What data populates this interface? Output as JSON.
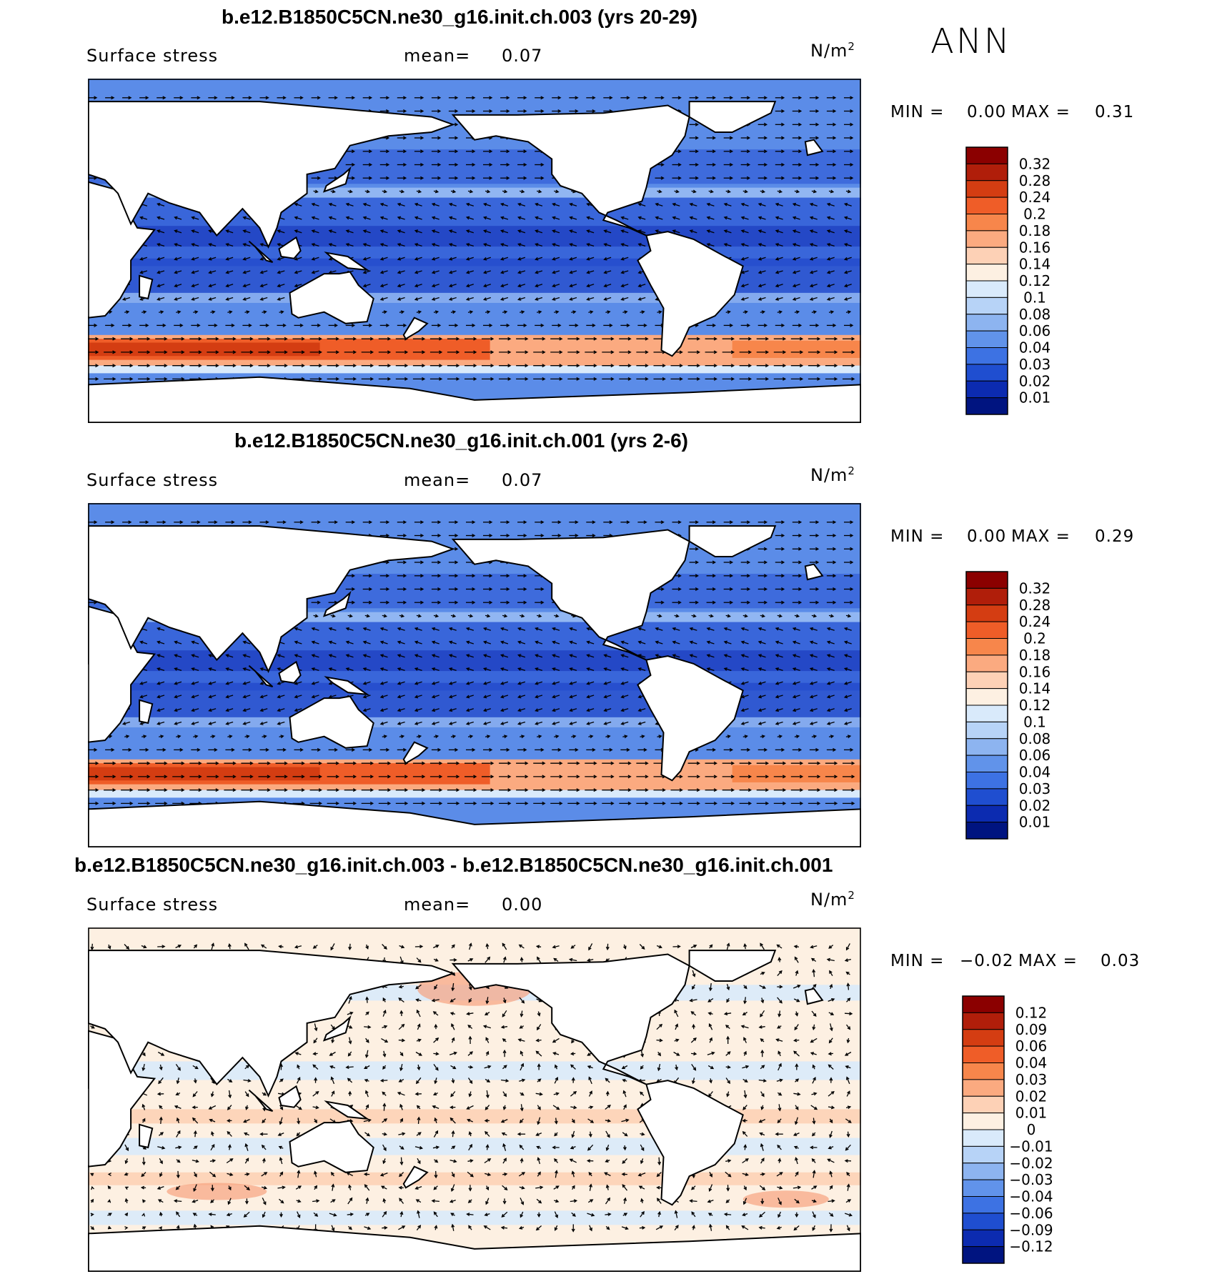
{
  "season": "ANN",
  "panels": [
    {
      "title": "b.e12.B1850C5CN.ne30_g16.init.ch.003 (yrs 20-29)",
      "left_label": "Surface stress",
      "mean_label": "mean=",
      "mean_value": "0.07",
      "units_base": "N/m",
      "units_exp": "2",
      "min_label": "MIN =",
      "min_value": "0.00",
      "max_label": "MAX =",
      "max_value": "0.31",
      "colorbar_ticks": [
        "0.32",
        "0.28",
        "0.24",
        "0.2",
        "0.18",
        "0.16",
        "0.14",
        "0.12",
        "0.1",
        "0.08",
        "0.06",
        "0.04",
        "0.03",
        "0.02",
        "0.01"
      ],
      "colorbar_colors": [
        "#8b0000",
        "#b01e0a",
        "#d43d12",
        "#ef5d28",
        "#f7864b",
        "#fbaa80",
        "#fdd1b6",
        "#fdf0e2",
        "#d9eafb",
        "#b7d3f7",
        "#8db4f0",
        "#6193ea",
        "#3d72e3",
        "#1f4ed0",
        "#0c2bb0",
        "#001480"
      ]
    },
    {
      "title": "b.e12.B1850C5CN.ne30_g16.init.ch.001 (yrs 2-6)",
      "left_label": "Surface stress",
      "mean_label": "mean=",
      "mean_value": "0.07",
      "units_base": "N/m",
      "units_exp": "2",
      "min_label": "MIN =",
      "min_value": "0.00",
      "max_label": "MAX =",
      "max_value": "0.29",
      "colorbar_ticks": [
        "0.32",
        "0.28",
        "0.24",
        "0.2",
        "0.18",
        "0.16",
        "0.14",
        "0.12",
        "0.1",
        "0.08",
        "0.06",
        "0.04",
        "0.03",
        "0.02",
        "0.01"
      ],
      "colorbar_colors": [
        "#8b0000",
        "#b01e0a",
        "#d43d12",
        "#ef5d28",
        "#f7864b",
        "#fbaa80",
        "#fdd1b6",
        "#fdf0e2",
        "#d9eafb",
        "#b7d3f7",
        "#8db4f0",
        "#6193ea",
        "#3d72e3",
        "#1f4ed0",
        "#0c2bb0",
        "#001480"
      ]
    },
    {
      "title": "b.e12.B1850C5CN.ne30_g16.init.ch.003 - b.e12.B1850C5CN.ne30_g16.init.ch.001",
      "left_label": "Surface stress",
      "mean_label": "mean=",
      "mean_value": "0.00",
      "units_base": "N/m",
      "units_exp": "2",
      "min_label": "MIN =",
      "min_value": "−0.02",
      "max_label": "MAX =",
      "max_value": "0.03",
      "colorbar_ticks": [
        "0.12",
        "0.09",
        "0.06",
        "0.04",
        "0.03",
        "0.02",
        "0.01",
        "0",
        "−0.01",
        "−0.02",
        "−0.03",
        "−0.04",
        "−0.06",
        "−0.09",
        "−0.12"
      ],
      "colorbar_colors": [
        "#8b0000",
        "#b01e0a",
        "#d43d12",
        "#ef5d28",
        "#f7864b",
        "#fbaa80",
        "#fdd1b6",
        "#fdf0e2",
        "#d9eafb",
        "#b7d3f7",
        "#8db4f0",
        "#6193ea",
        "#3d72e3",
        "#1f4ed0",
        "#0c2bb0",
        "#001480"
      ]
    }
  ]
}
